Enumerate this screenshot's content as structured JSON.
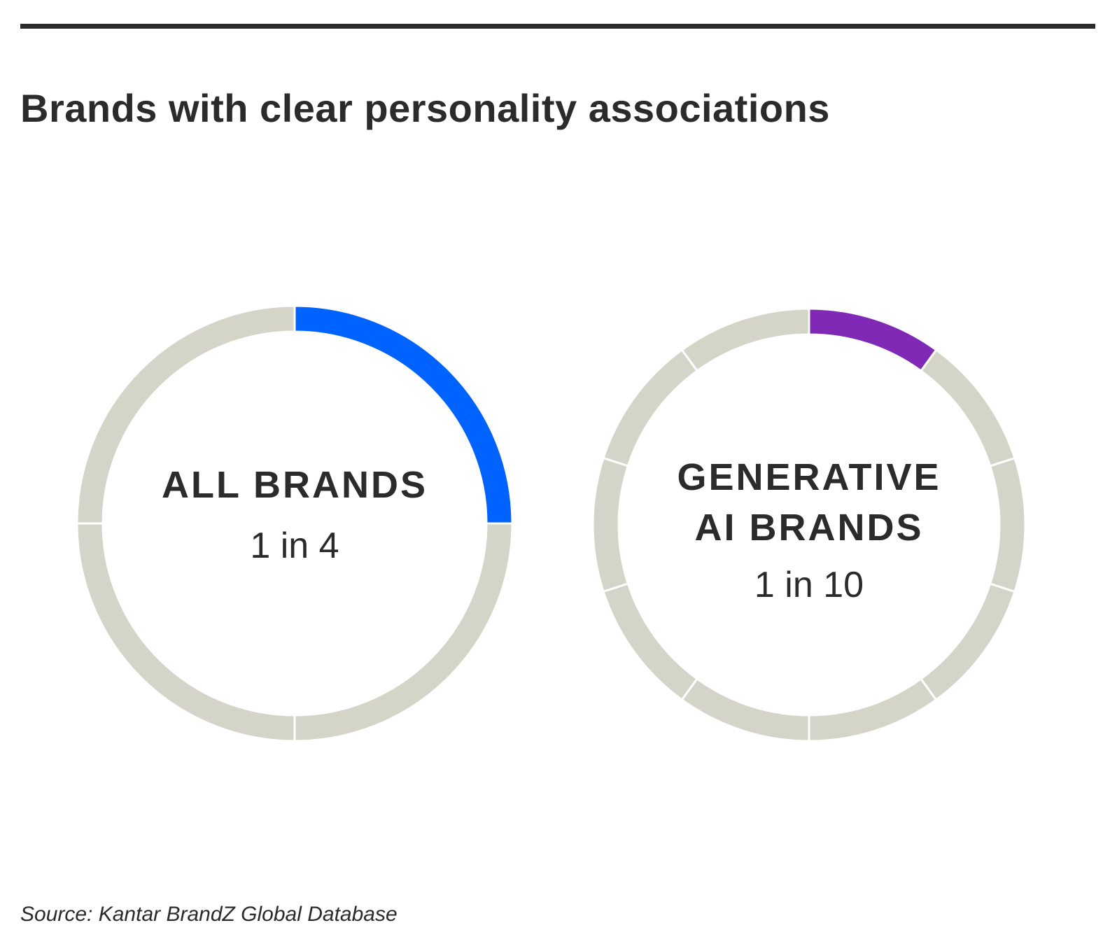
{
  "title": "Brands with clear personality associations",
  "source": "Source: Kantar BrandZ Global Database",
  "chart_data": [
    {
      "type": "pie",
      "style": "segmented-donut",
      "label_lines": [
        "ALL BRANDS"
      ],
      "value_label": "1 in 4",
      "segments": 4,
      "highlighted": 1,
      "highlight_color": "#0062FF",
      "base_color": "#D4D4C9"
    },
    {
      "type": "pie",
      "style": "segmented-donut",
      "label_lines": [
        "GENERATIVE",
        "AI BRANDS"
      ],
      "value_label": "1 in 10",
      "segments": 10,
      "highlighted": 1,
      "highlight_color": "#8029B6",
      "base_color": "#D4D4C9"
    }
  ]
}
